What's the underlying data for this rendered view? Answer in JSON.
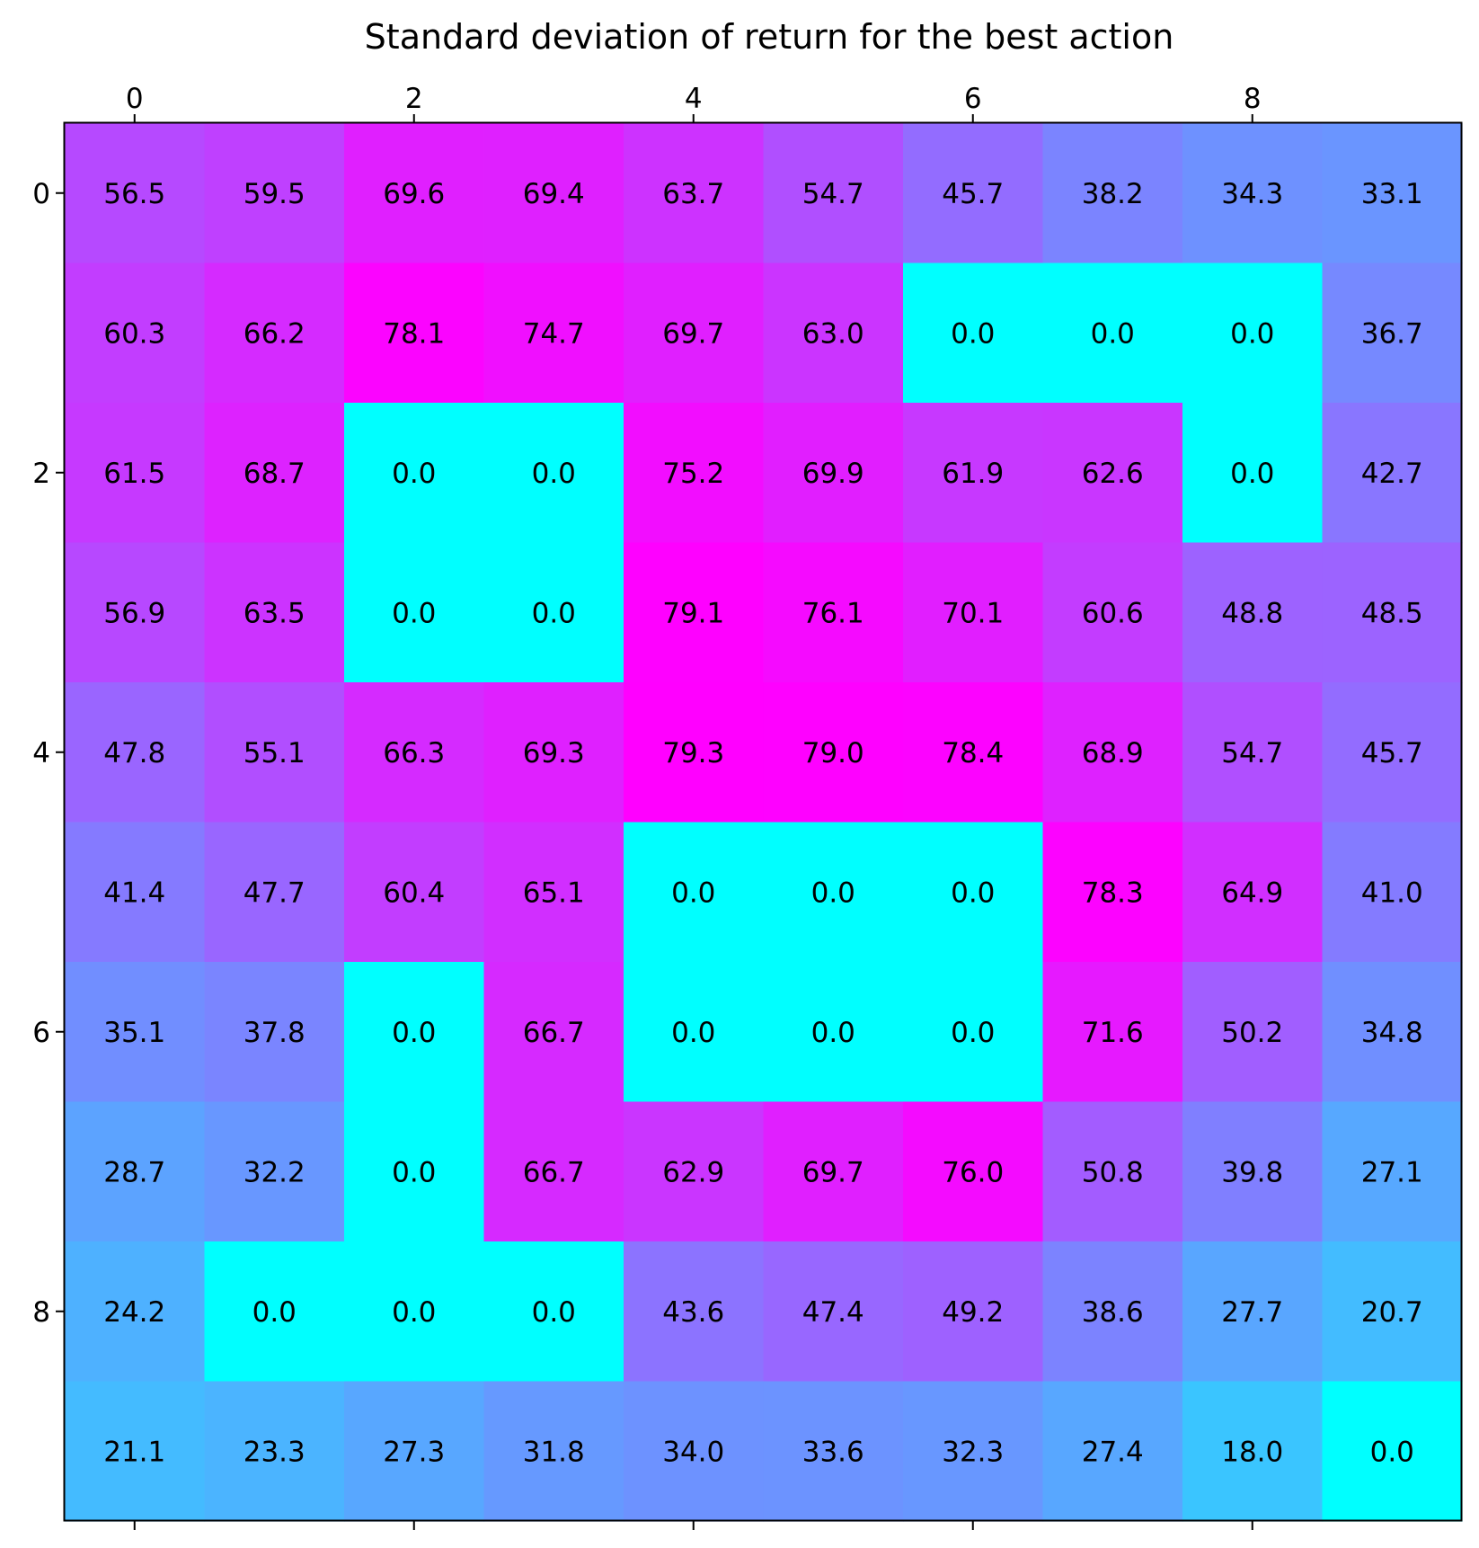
{
  "chart_data": {
    "type": "heatmap",
    "title": "Standard deviation of return for the best action",
    "colormap": "cool",
    "value_range": [
      0,
      79.3
    ],
    "x_ticks": [
      "0",
      "2",
      "4",
      "6",
      "8"
    ],
    "y_ticks": [
      "0",
      "2",
      "4",
      "6",
      "8"
    ],
    "x_tick_position": "top",
    "grid": false,
    "values": [
      [
        56.5,
        59.5,
        69.6,
        69.4,
        63.7,
        54.7,
        45.7,
        38.2,
        34.3,
        33.1
      ],
      [
        60.3,
        66.2,
        78.1,
        74.7,
        69.7,
        63.0,
        0.0,
        0.0,
        0.0,
        36.7
      ],
      [
        61.5,
        68.7,
        0.0,
        0.0,
        75.2,
        69.9,
        61.9,
        62.6,
        0.0,
        42.7
      ],
      [
        56.9,
        63.5,
        0.0,
        0.0,
        79.1,
        76.1,
        70.1,
        60.6,
        48.8,
        48.5
      ],
      [
        47.8,
        55.1,
        66.3,
        69.3,
        79.3,
        79.0,
        78.4,
        68.9,
        54.7,
        45.7
      ],
      [
        41.4,
        47.7,
        60.4,
        65.1,
        0.0,
        0.0,
        0.0,
        78.3,
        64.9,
        41.0
      ],
      [
        35.1,
        37.8,
        0.0,
        66.7,
        0.0,
        0.0,
        0.0,
        71.6,
        50.2,
        34.8
      ],
      [
        28.7,
        32.2,
        0.0,
        66.7,
        62.9,
        69.7,
        76.0,
        50.8,
        39.8,
        27.1
      ],
      [
        24.2,
        0.0,
        0.0,
        0.0,
        43.6,
        47.4,
        49.2,
        38.6,
        27.7,
        20.7
      ],
      [
        21.1,
        23.3,
        27.3,
        31.8,
        34.0,
        33.6,
        32.3,
        27.4,
        18.0,
        0.0
      ]
    ],
    "labels": [
      [
        "56.5",
        "59.5",
        "69.6",
        "69.4",
        "63.7",
        "54.7",
        "45.7",
        "38.2",
        "34.3",
        "33.1"
      ],
      [
        "60.3",
        "66.2",
        "78.1",
        "74.7",
        "69.7",
        "63.0",
        "0.0",
        "0.0",
        "0.0",
        "36.7"
      ],
      [
        "61.5",
        "68.7",
        "0.0",
        "0.0",
        "75.2",
        "69.9",
        "61.9",
        "62.6",
        "0.0",
        "42.7"
      ],
      [
        "56.9",
        "63.5",
        "0.0",
        "0.0",
        "79.1",
        "76.1",
        "70.1",
        "60.6",
        "48.8",
        "48.5"
      ],
      [
        "47.8",
        "55.1",
        "66.3",
        "69.3",
        "79.3",
        "79.0",
        "78.4",
        "68.9",
        "54.7",
        "45.7"
      ],
      [
        "41.4",
        "47.7",
        "60.4",
        "65.1",
        "0.0",
        "0.0",
        "0.0",
        "78.3",
        "64.9",
        "41.0"
      ],
      [
        "35.1",
        "37.8",
        "0.0",
        "66.7",
        "0.0",
        "0.0",
        "0.0",
        "71.6",
        "50.2",
        "34.8"
      ],
      [
        "28.7",
        "32.2",
        "0.0",
        "66.7",
        "62.9",
        "69.7",
        "76.0",
        "50.8",
        "39.8",
        "27.1"
      ],
      [
        "24.2",
        "0.0",
        "0.0",
        "0.0",
        "43.6",
        "47.4",
        "49.2",
        "38.6",
        "27.7",
        "20.7"
      ],
      [
        "21.1",
        "23.3",
        "27.3",
        "31.8",
        "34.0",
        "33.6",
        "32.3",
        "27.4",
        "18.0",
        "0.0"
      ]
    ]
  }
}
